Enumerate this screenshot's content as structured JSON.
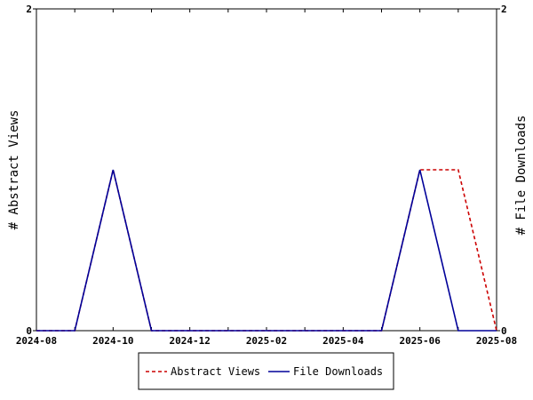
{
  "chart_data": {
    "type": "line",
    "x": [
      "2024-08",
      "2024-09",
      "2024-10",
      "2024-11",
      "2024-12",
      "2025-01",
      "2025-02",
      "2025-03",
      "2025-04",
      "2025-05",
      "2025-06",
      "2025-07",
      "2025-08"
    ],
    "x_tick_labels": [
      "2024-08",
      "2024-10",
      "2024-12",
      "2025-02",
      "2025-04",
      "2025-06",
      "2025-08"
    ],
    "series": [
      {
        "name": "Abstract Views",
        "values": [
          0,
          0,
          1,
          0,
          0,
          0,
          0,
          0,
          0,
          0,
          1,
          1,
          0
        ],
        "color": "#cc0000",
        "style": "dashed",
        "axis": "left"
      },
      {
        "name": "File Downloads",
        "values": [
          0,
          0,
          1,
          0,
          0,
          0,
          0,
          0,
          0,
          0,
          1,
          0,
          0
        ],
        "color": "#000099",
        "style": "solid",
        "axis": "right"
      }
    ],
    "ylabel": "# Abstract Views",
    "y2label": "# File Downloads",
    "ylim": [
      0,
      2
    ],
    "y2lim": [
      0,
      2
    ],
    "y_ticks": [
      "0",
      "2"
    ],
    "y2_ticks": [
      "0",
      "2"
    ],
    "legend_position": "bottom-center",
    "grid": false
  }
}
